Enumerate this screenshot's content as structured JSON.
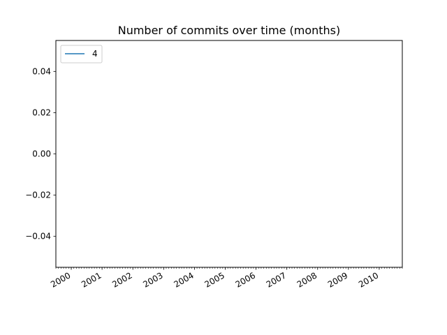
{
  "chart_data": {
    "type": "line",
    "title": "Number of commits over time (months)",
    "xlabel": "",
    "ylabel": "",
    "x_axis": "date",
    "xlim": [
      "1999-07",
      "2010-10"
    ],
    "x_ticks": [
      "2000",
      "2001",
      "2002",
      "2003",
      "2004",
      "2005",
      "2006",
      "2007",
      "2008",
      "2009",
      "2010"
    ],
    "ylim": [
      -0.055,
      0.055
    ],
    "y_ticks": [
      "0.04",
      "0.02",
      "0.00",
      "−0.02",
      "−0.04"
    ],
    "series": [
      {
        "name": "4",
        "color": "#1f77b4",
        "x": [],
        "y": []
      }
    ],
    "legend": "upper-left",
    "grid": false
  }
}
